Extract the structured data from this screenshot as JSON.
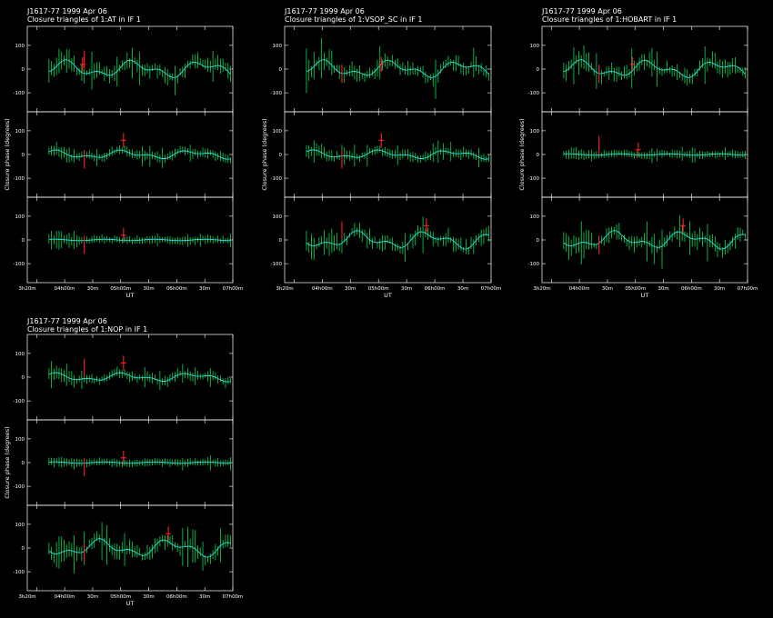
{
  "chart_data": [
    {
      "type": "line",
      "source_line": "J1617-77  1999 Apr 06",
      "title": "Closure triangles of 1:AT in IF 1",
      "xlabel": "UT",
      "ylabel": "Closure phase  (degrees)",
      "xlim_hours": [
        3.333,
        7.0
      ],
      "ylim": [
        -180,
        180
      ],
      "x_ticks": [
        "3h20m",
        "04h00m",
        "30m",
        "05h00m",
        "30m",
        "06h00m",
        "30m",
        "07h00m"
      ],
      "y_ticks": [
        "100",
        "0",
        "-100"
      ],
      "panels": [
        {
          "triangle": "",
          "variant": 0,
          "scale": 1.0,
          "flag_x": 4.32
        },
        {
          "triangle": "",
          "variant": 1,
          "scale": 0.5,
          "flag_x": 5.05
        },
        {
          "triangle": "",
          "variant": 2,
          "scale": 0.3,
          "flag_x": 5.05
        }
      ]
    },
    {
      "type": "line",
      "source_line": "J1617-77  1999 Apr 06",
      "title": "Closure triangles of 1:VSOP_SC in IF 1",
      "xlabel": "UT",
      "ylabel": "Closure phase  (degrees)",
      "xlim_hours": [
        3.333,
        7.0
      ],
      "ylim": [
        -180,
        180
      ],
      "x_ticks": [
        "3h20m",
        "04h00m",
        "30m",
        "05h00m",
        "30m",
        "06h00m",
        "30m",
        "07h00m"
      ],
      "y_ticks": [
        "100",
        "0",
        "-100"
      ],
      "panels": [
        {
          "triangle": "",
          "variant": 0,
          "scale": 1.0,
          "flag_x": 5.05
        },
        {
          "triangle": "",
          "variant": 1,
          "scale": 0.5,
          "flag_x": 5.05
        },
        {
          "triangle": "",
          "variant": 3,
          "scale": 1.0,
          "flag_x": 5.85
        }
      ]
    },
    {
      "type": "line",
      "source_line": "J1617-77  1999 Apr 06",
      "title": "Closure triangles of 1:HOBART in IF 1",
      "xlabel": "UT",
      "ylabel": "Closure phase  (degrees)",
      "xlim_hours": [
        3.333,
        7.0
      ],
      "ylim": [
        -180,
        180
      ],
      "x_ticks": [
        "3h20m",
        "04h00m",
        "30m",
        "05h00m",
        "30m",
        "06h00m",
        "30m",
        "07h00m"
      ],
      "y_ticks": [
        "100",
        "0",
        "-100"
      ],
      "panels": [
        {
          "triangle": "",
          "variant": 0,
          "scale": 1.0,
          "flag_x": 4.95
        },
        {
          "triangle": "",
          "variant": 2,
          "scale": 0.3,
          "flag_x": 5.05
        },
        {
          "triangle": "",
          "variant": 3,
          "scale": 1.0,
          "flag_x": 5.85
        }
      ]
    },
    {
      "type": "line",
      "source_line": "J1617-77  1999 Apr 06",
      "title": "Closure triangles of 1:NOP in IF 1",
      "xlabel": "UT",
      "ylabel": "Closure phase  (degrees)",
      "xlim_hours": [
        3.333,
        7.0
      ],
      "ylim": [
        -180,
        180
      ],
      "x_ticks": [
        "3h20m",
        "04h00m",
        "30m",
        "05h00m",
        "30m",
        "06h00m",
        "30m",
        "07h00m"
      ],
      "y_ticks": [
        "100",
        "0",
        "-100"
      ],
      "panels": [
        {
          "triangle": "",
          "variant": 1,
          "scale": 0.5,
          "flag_x": 5.05
        },
        {
          "triangle": "",
          "variant": 2,
          "scale": 0.3,
          "flag_x": 5.05
        },
        {
          "triangle": "",
          "variant": 3,
          "scale": 1.0,
          "flag_x": 5.85
        }
      ]
    }
  ],
  "colors": {
    "background": "#000000",
    "axes": "#ffffff",
    "errorbars": "#00dd55",
    "model": "#33dddd",
    "flagged": "#ff2222"
  }
}
